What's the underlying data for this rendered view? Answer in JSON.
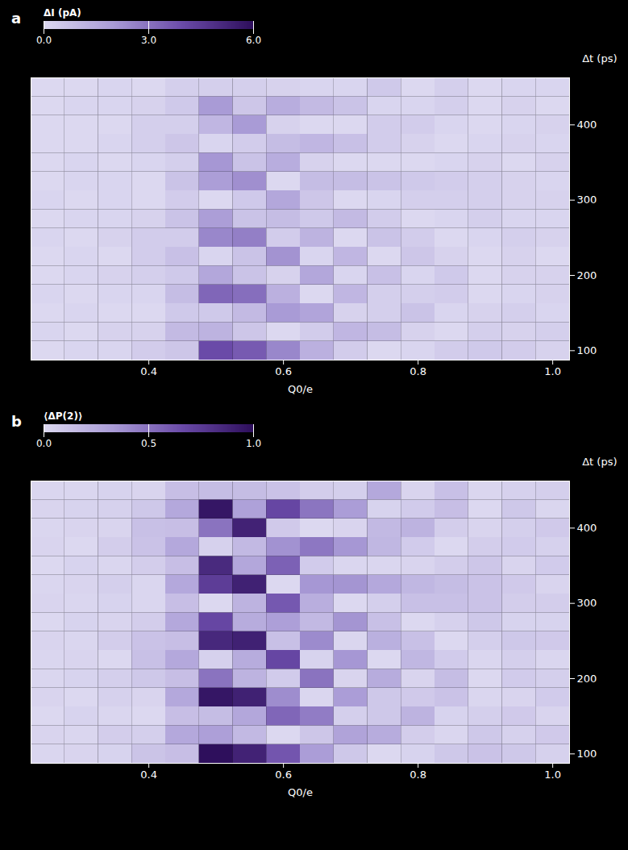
{
  "chart_data": [
    {
      "type": "heatmap",
      "panel": "a",
      "x_label": "Q0/e",
      "y_label": "Δt (ps)",
      "x": [
        0.25,
        0.3,
        0.35,
        0.4,
        0.45,
        0.5,
        0.55,
        0.6,
        0.65,
        0.7,
        0.75,
        0.8,
        0.85,
        0.9,
        0.95,
        1.0
      ],
      "y": [
        100,
        125,
        150,
        175,
        200,
        225,
        250,
        275,
        300,
        325,
        350,
        375,
        400,
        425,
        450
      ],
      "cells": [
        [
          0.0,
          0.1,
          0.1,
          0.4,
          0.6,
          4.0,
          3.6,
          2.5,
          1.3,
          0.4,
          0.0,
          0.1,
          0.4,
          0.5,
          0.4,
          0.2
        ],
        [
          0.1,
          0.0,
          0.2,
          0.2,
          1.0,
          1.2,
          0.6,
          0.0,
          0.4,
          1.1,
          0.9,
          0.2,
          0.0,
          0.3,
          0.2,
          0.3
        ],
        [
          0.0,
          0.1,
          0.0,
          0.0,
          0.5,
          0.5,
          1.0,
          2.0,
          1.7,
          0.2,
          0.3,
          0.7,
          0.1,
          0.2,
          0.3,
          0.1
        ],
        [
          0.1,
          0.0,
          0.1,
          0.1,
          0.9,
          3.3,
          3.1,
          1.3,
          0.0,
          1.1,
          0.3,
          0.3,
          0.4,
          0.0,
          0.1,
          0.2
        ],
        [
          0.0,
          0.1,
          0.2,
          0.3,
          0.5,
          1.6,
          0.7,
          0.2,
          1.6,
          0.1,
          0.8,
          0.1,
          0.5,
          0.0,
          0.2,
          0.2
        ],
        [
          0.0,
          0.1,
          0.0,
          0.4,
          0.8,
          0.1,
          0.7,
          2.2,
          0.1,
          1.1,
          0.0,
          0.6,
          0.2,
          0.0,
          0.2,
          0.0
        ],
        [
          0.1,
          0.0,
          0.2,
          0.4,
          0.4,
          2.5,
          2.7,
          0.4,
          1.2,
          0.0,
          0.7,
          0.4,
          0.0,
          0.1,
          0.3,
          0.2
        ],
        [
          0.0,
          0.1,
          0.1,
          0.2,
          0.7,
          1.9,
          0.7,
          0.9,
          0.5,
          1.0,
          0.4,
          0.0,
          0.1,
          0.3,
          0.1,
          0.1
        ],
        [
          0.1,
          0.0,
          0.1,
          0.0,
          0.4,
          0.0,
          0.5,
          1.6,
          0.6,
          0.0,
          0.1,
          0.3,
          0.3,
          0.3,
          0.2,
          0.2
        ],
        [
          0.0,
          0.1,
          0.1,
          0.0,
          0.7,
          1.9,
          2.3,
          0.0,
          0.9,
          0.9,
          0.7,
          0.5,
          0.4,
          0.3,
          0.2,
          0.1
        ],
        [
          0.0,
          0.1,
          0.0,
          0.1,
          0.3,
          2.1,
          0.7,
          1.4,
          0.2,
          0.0,
          0.0,
          0.0,
          0.1,
          0.2,
          0.0,
          0.2
        ],
        [
          0.0,
          0.0,
          0.1,
          0.3,
          0.6,
          0.1,
          0.4,
          0.9,
          1.1,
          0.8,
          0.4,
          0.2,
          0.0,
          0.1,
          0.2,
          0.1
        ],
        [
          0.0,
          0.0,
          0.0,
          0.3,
          0.3,
          1.1,
          2.0,
          0.2,
          0.0,
          0.0,
          0.4,
          0.4,
          0.1,
          0.0,
          0.1,
          0.2
        ],
        [
          0.0,
          0.1,
          0.1,
          0.2,
          0.5,
          2.0,
          0.6,
          1.4,
          1.0,
          0.7,
          0.1,
          0.1,
          0.3,
          0.0,
          0.2,
          0.0
        ],
        [
          0.0,
          0.0,
          0.1,
          0.0,
          0.3,
          0.3,
          0.3,
          0.2,
          0.1,
          0.1,
          0.5,
          0.0,
          0.3,
          0.0,
          0.1,
          0.1
        ]
      ],
      "xlim": [
        0.225,
        1.025
      ],
      "xticks": [
        0.4,
        0.6,
        0.8,
        {
          "value": 1,
          "label": "1.0"
        }
      ],
      "ylim": [
        87.5,
        462.5
      ],
      "yticks": [
        100,
        200,
        300,
        400
      ],
      "colorbar": {
        "label": "ΔI (pA)",
        "range": [
          0,
          6
        ],
        "ticks": [
          0,
          3,
          6
        ]
      }
    },
    {
      "type": "heatmap",
      "panel": "b",
      "x_label": "Q0/e",
      "y_label": "Δt (ps)",
      "x": [
        0.25,
        0.3,
        0.35,
        0.4,
        0.45,
        0.5,
        0.55,
        0.6,
        0.65,
        0.7,
        0.75,
        0.8,
        0.85,
        0.9,
        0.95,
        1.0
      ],
      "y": [
        100,
        125,
        150,
        175,
        200,
        225,
        250,
        275,
        300,
        325,
        350,
        375,
        400,
        425,
        450
      ],
      "cells": [
        [
          0.01,
          0.02,
          0.03,
          0.11,
          0.14,
          1.0,
          0.89,
          0.62,
          0.32,
          0.09,
          0.0,
          0.03,
          0.09,
          0.12,
          0.09,
          0.04
        ],
        [
          0.02,
          0.01,
          0.06,
          0.05,
          0.26,
          0.31,
          0.17,
          0.0,
          0.1,
          0.29,
          0.24,
          0.06,
          0.01,
          0.09,
          0.04,
          0.08
        ],
        [
          0.0,
          0.03,
          0.01,
          0.0,
          0.14,
          0.15,
          0.27,
          0.55,
          0.46,
          0.05,
          0.09,
          0.2,
          0.03,
          0.05,
          0.08,
          0.02
        ],
        [
          0.02,
          0.0,
          0.04,
          0.02,
          0.26,
          0.96,
          0.9,
          0.39,
          0.01,
          0.32,
          0.09,
          0.08,
          0.12,
          0.01,
          0.02,
          0.07
        ],
        [
          0.01,
          0.03,
          0.05,
          0.09,
          0.14,
          0.5,
          0.2,
          0.07,
          0.5,
          0.02,
          0.24,
          0.02,
          0.15,
          0.0,
          0.07,
          0.05
        ],
        [
          0.01,
          0.02,
          0.0,
          0.13,
          0.26,
          0.04,
          0.24,
          0.69,
          0.03,
          0.35,
          0.0,
          0.18,
          0.07,
          0.01,
          0.05,
          0.01
        ],
        [
          0.02,
          0.01,
          0.06,
          0.12,
          0.14,
          0.86,
          0.9,
          0.13,
          0.4,
          0.01,
          0.22,
          0.13,
          0.0,
          0.05,
          0.09,
          0.08
        ],
        [
          0.0,
          0.03,
          0.02,
          0.06,
          0.26,
          0.69,
          0.24,
          0.31,
          0.17,
          0.36,
          0.13,
          0.0,
          0.04,
          0.09,
          0.03,
          0.03
        ],
        [
          0.02,
          0.01,
          0.03,
          0.01,
          0.14,
          0.0,
          0.2,
          0.61,
          0.23,
          0.0,
          0.05,
          0.13,
          0.13,
          0.12,
          0.06,
          0.06
        ],
        [
          0.01,
          0.02,
          0.05,
          0.01,
          0.26,
          0.74,
          0.9,
          0.0,
          0.35,
          0.36,
          0.26,
          0.18,
          0.15,
          0.12,
          0.08,
          0.02
        ],
        [
          0.0,
          0.03,
          0.01,
          0.06,
          0.14,
          0.85,
          0.27,
          0.57,
          0.07,
          0.01,
          0.01,
          0.02,
          0.06,
          0.1,
          0.02,
          0.07
        ],
        [
          0.02,
          0.0,
          0.06,
          0.12,
          0.26,
          0.04,
          0.17,
          0.37,
          0.48,
          0.35,
          0.18,
          0.07,
          0.0,
          0.06,
          0.07,
          0.04
        ],
        [
          0.01,
          0.02,
          0.02,
          0.13,
          0.14,
          0.5,
          0.89,
          0.08,
          0.0,
          0.02,
          0.17,
          0.2,
          0.06,
          0.02,
          0.05,
          0.08
        ],
        [
          0.02,
          0.03,
          0.04,
          0.09,
          0.26,
          0.96,
          0.3,
          0.69,
          0.49,
          0.32,
          0.03,
          0.07,
          0.14,
          0.0,
          0.09,
          0.01
        ],
        [
          0.01,
          0.01,
          0.03,
          0.02,
          0.14,
          0.15,
          0.15,
          0.12,
          0.06,
          0.05,
          0.26,
          0.02,
          0.13,
          0.01,
          0.04,
          0.05
        ]
      ],
      "xlim": [
        0.225,
        1.025
      ],
      "xticks": [
        0.4,
        0.6,
        0.8,
        {
          "value": 1,
          "label": "1.0"
        }
      ],
      "ylim": [
        87.5,
        462.5
      ],
      "yticks": [
        100,
        200,
        300,
        400
      ],
      "colorbar": {
        "label": "⟨ΔP(2)⟩",
        "range": [
          0,
          1
        ],
        "ticks": [
          0,
          0.5,
          1
        ]
      }
    }
  ]
}
